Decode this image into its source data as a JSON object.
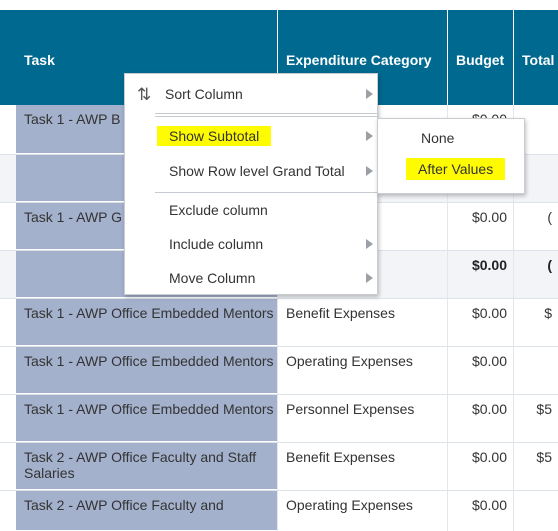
{
  "header": {
    "task": "Task",
    "category": "Expenditure Category",
    "budget": "Budget",
    "total": "Total"
  },
  "rows": [
    {
      "task": "Task 1 - AWP B",
      "category": "",
      "budget": "$0.00",
      "total": "",
      "type": "data"
    },
    {
      "task": "",
      "category": "",
      "budget": "",
      "total": "",
      "type": "subtotal"
    },
    {
      "task": "Task 1 - AWP G",
      "category": "es",
      "budget": "$0.00",
      "total": "(",
      "type": "data"
    },
    {
      "task": "",
      "category": "",
      "budget": "$0.00",
      "total": "(",
      "type": "subtotal"
    },
    {
      "task": "Task 1 - AWP Office Embedded Mentors",
      "category": "Benefit Expenses",
      "budget": "$0.00",
      "total": "$",
      "type": "data"
    },
    {
      "task": "Task 1 - AWP Office Embedded Mentors",
      "category": "Operating Expenses",
      "budget": "$0.00",
      "total": "",
      "type": "data"
    },
    {
      "task": "Task 1 - AWP Office Embedded Mentors",
      "category": "Personnel Expenses",
      "budget": "$0.00",
      "total": "$5",
      "type": "data"
    },
    {
      "task": "Task 2 - AWP Office Faculty and Staff Salaries",
      "category": "Benefit Expenses",
      "budget": "$0.00",
      "total": "$5",
      "type": "data"
    },
    {
      "task": "Task 2 - AWP Office Faculty and",
      "category": "Operating Expenses",
      "budget": "$0.00",
      "total": "",
      "type": "data"
    }
  ],
  "context_menu": {
    "sort_column": "Sort Column",
    "show_subtotal": "Show Subtotal",
    "show_grand_total": "Show Row level Grand Total",
    "exclude_column": "Exclude column",
    "include_column": "Include column",
    "move_column": "Move Column"
  },
  "submenu": {
    "none": "None",
    "after_values": "After Values"
  },
  "colors": {
    "header_bg": "#00698f",
    "task_cell_bg": "#a3b1cc",
    "highlight": "#fffb00"
  }
}
